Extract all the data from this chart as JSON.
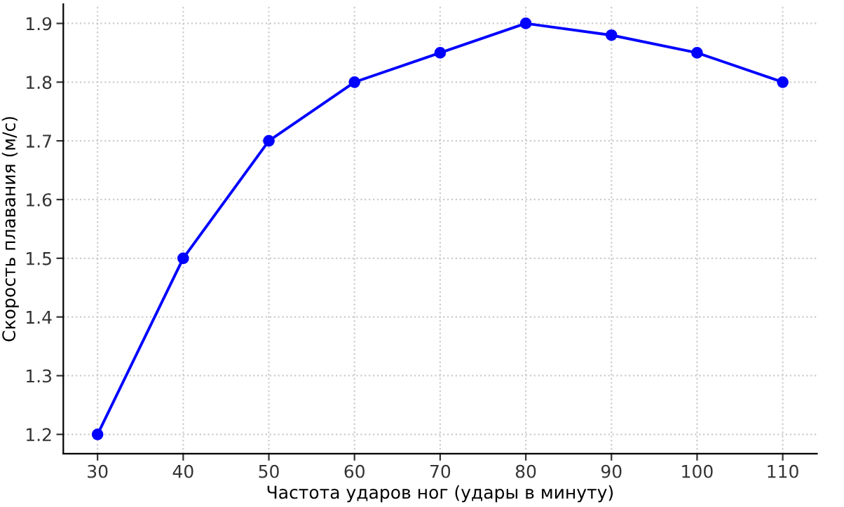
{
  "chart_data": {
    "type": "line",
    "xlabel": "Частота ударов ног (удары в минуту)",
    "ylabel": "Скорость плавания (м/с)",
    "x": [
      30,
      40,
      50,
      60,
      70,
      80,
      90,
      100,
      110
    ],
    "series": [
      {
        "color": "#0000ff",
        "values": [
          1.2,
          1.5,
          1.7,
          1.8,
          1.85,
          1.9,
          1.88,
          1.85,
          1.8
        ]
      }
    ],
    "xlim": [
      26,
      114
    ],
    "ylim": [
      1.167,
      1.933
    ],
    "xticks": [
      30,
      40,
      50,
      60,
      70,
      80,
      90,
      100,
      110
    ],
    "yticks": [
      1.2,
      1.3,
      1.4,
      1.5,
      1.6,
      1.7,
      1.8,
      1.9
    ],
    "grid": true,
    "marker": "circle",
    "line_style": "solid",
    "legend": false
  }
}
